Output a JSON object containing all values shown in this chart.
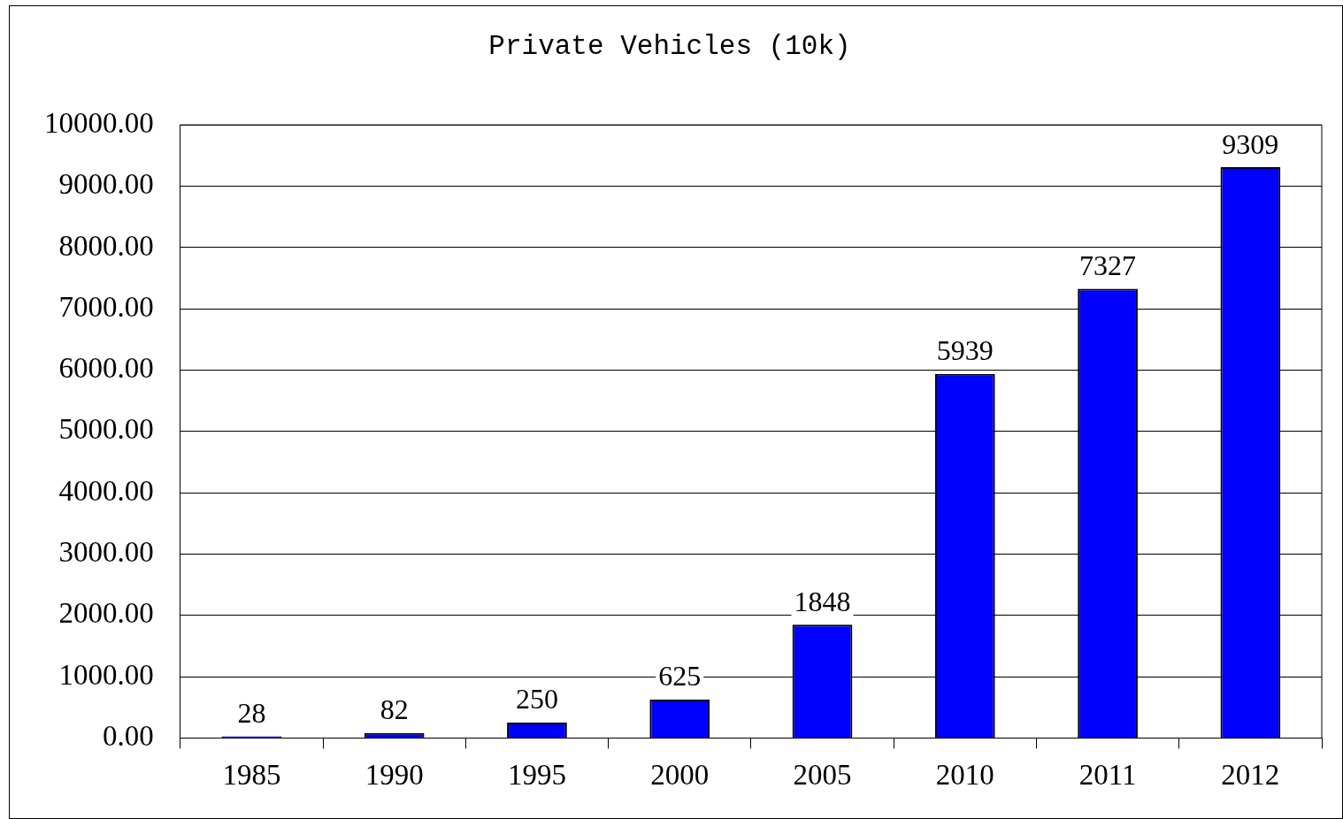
{
  "chart_data": {
    "type": "bar",
    "title": "Private Vehicles (10k)",
    "categories": [
      "1985",
      "1990",
      "1995",
      "2000",
      "2005",
      "2010",
      "2011",
      "2012"
    ],
    "values": [
      28,
      82,
      250,
      625,
      1848,
      5939,
      7327,
      9309
    ],
    "color": "#0000ff",
    "ylim": [
      0,
      10000
    ],
    "yticks": [
      {
        "value": 0,
        "label": "0.00"
      },
      {
        "value": 1000,
        "label": "1000.00"
      },
      {
        "value": 2000,
        "label": "2000.00"
      },
      {
        "value": 3000,
        "label": "3000.00"
      },
      {
        "value": 4000,
        "label": "4000.00"
      },
      {
        "value": 5000,
        "label": "5000.00"
      },
      {
        "value": 6000,
        "label": "6000.00"
      },
      {
        "value": 7000,
        "label": "7000.00"
      },
      {
        "value": 8000,
        "label": "8000.00"
      },
      {
        "value": 9000,
        "label": "9000.00"
      },
      {
        "value": 10000,
        "label": "10000.00"
      }
    ],
    "grid": "y",
    "legend": false,
    "data_labels": true
  }
}
